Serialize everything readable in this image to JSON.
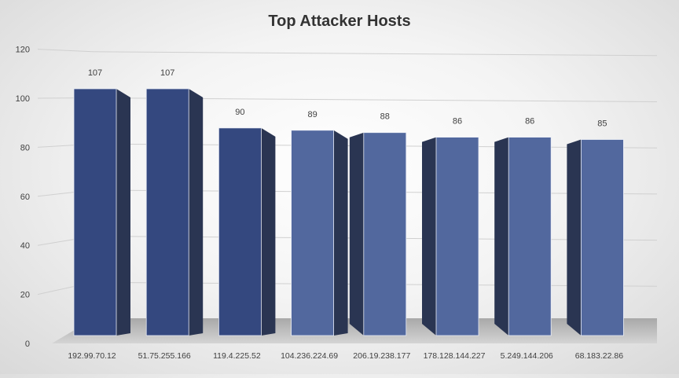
{
  "chart_data": {
    "type": "bar",
    "title": "Top Attacker Hosts",
    "categories": [
      "192.99.70.12",
      "51.75.255.166",
      "119.4.225.52",
      "104.236.224.69",
      "206.19.238.177",
      "178.128.144.227",
      "5.249.144.206",
      "68.183.22.86"
    ],
    "values": [
      107,
      107,
      90,
      89,
      88,
      86,
      86,
      85
    ],
    "ylim": [
      0,
      120
    ],
    "yticks": [
      0,
      20,
      40,
      60,
      80,
      100,
      120
    ],
    "xlabel": "",
    "ylabel": "",
    "grid": true,
    "data_labels": true,
    "colors": {
      "bar_front": "#34487f",
      "bar_front_light": "#52689e",
      "bar_side": "#2a3552",
      "floor": "#c2c2c2",
      "gridline": "#d0d0d0",
      "text": "#404040"
    }
  }
}
